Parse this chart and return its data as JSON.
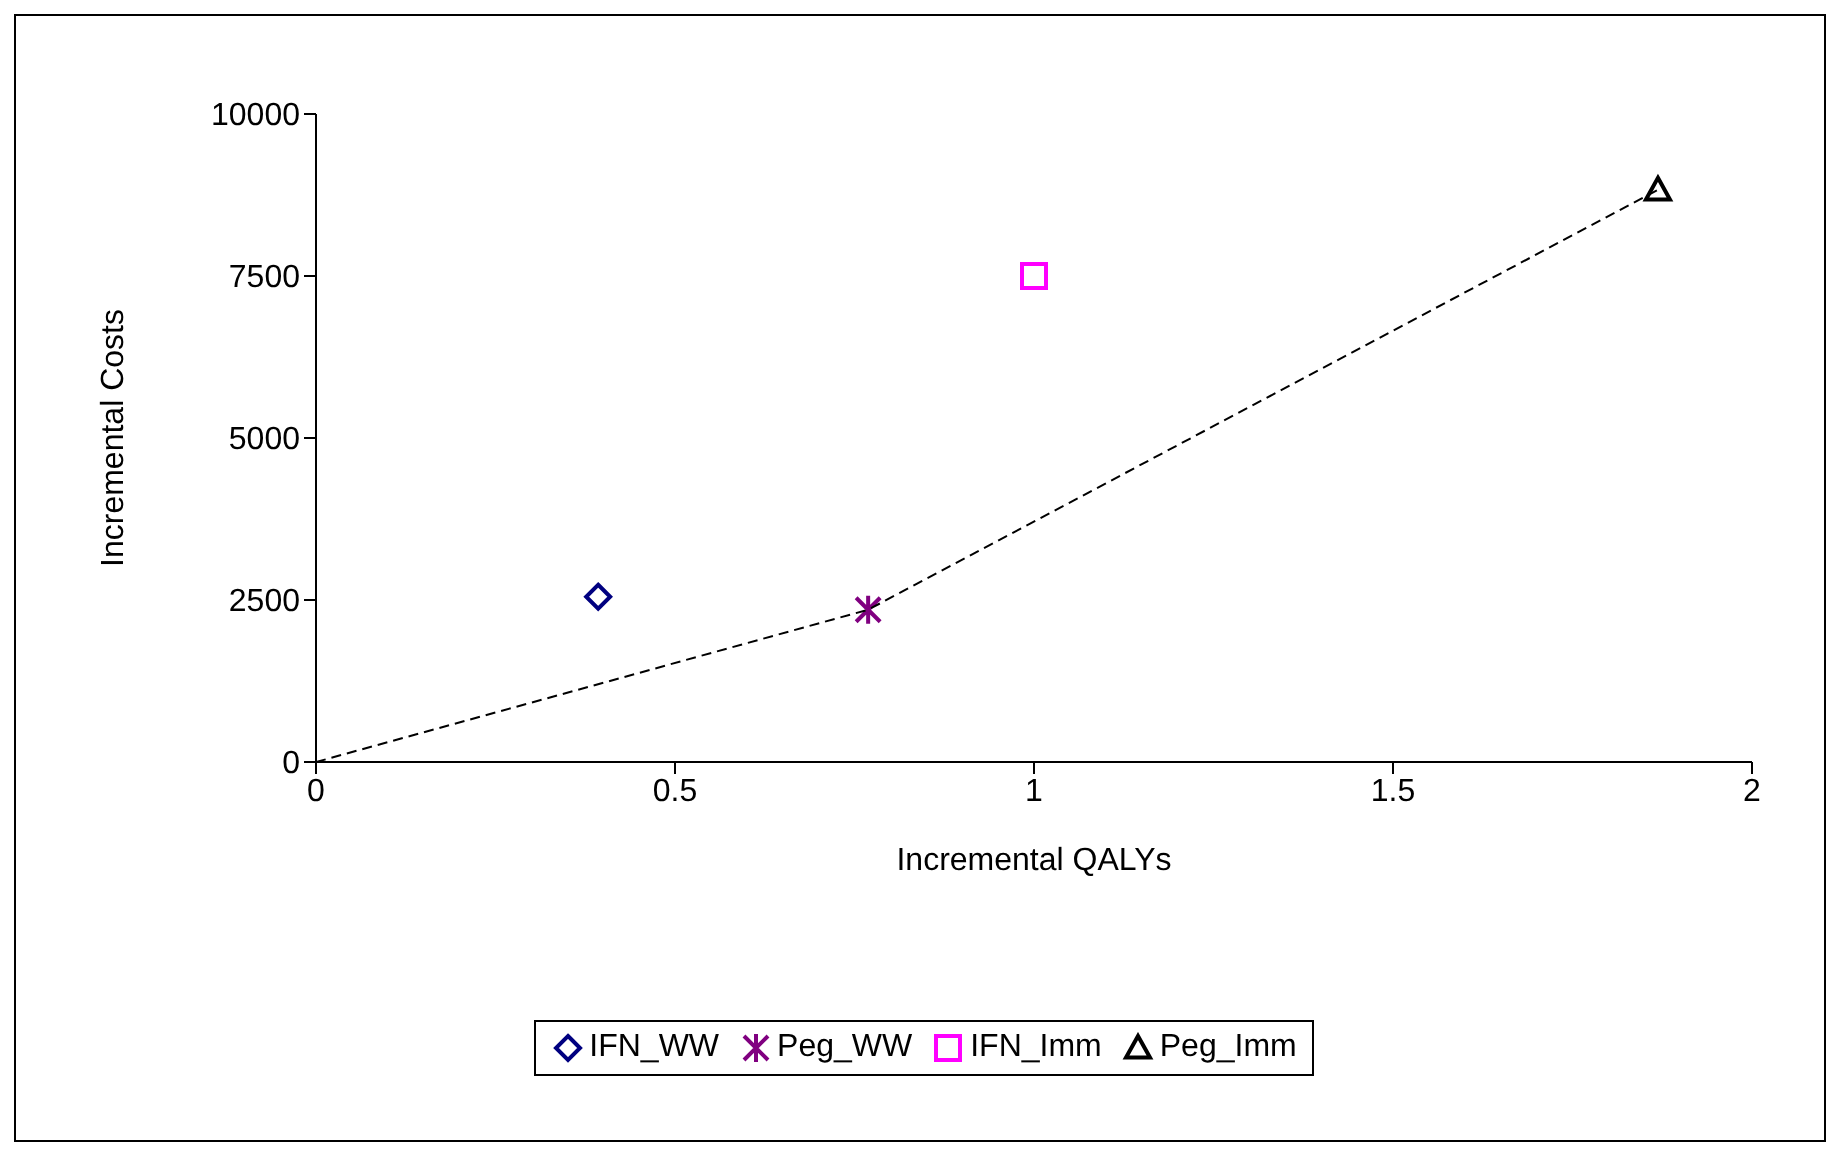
{
  "chart_data": {
    "type": "scatter",
    "xlabel": "Incremental QALYs",
    "ylabel": "Incremental Costs",
    "xlim": [
      0,
      2
    ],
    "xticks": [
      0,
      0.5,
      1,
      1.5,
      2
    ],
    "ylim": [
      0,
      10000
    ],
    "yticks": [
      0,
      2500,
      5000,
      7500,
      10000
    ],
    "legend": "bottom",
    "series": [
      {
        "name": "IFN_WW",
        "color": "#000080",
        "marker": "diamond",
        "x": [
          0.393
        ],
        "values": [
          2550
        ]
      },
      {
        "name": "Peg_WW",
        "color": "#800080",
        "marker": "cross",
        "x": [
          0.769
        ],
        "values": [
          2350
        ]
      },
      {
        "name": "IFN_Imm",
        "color": "#ff00ff",
        "marker": "square",
        "x": [
          1.0
        ],
        "values": [
          7500
        ]
      },
      {
        "name": "Peg_Imm",
        "color": "#000000",
        "marker": "triangle",
        "x": [
          1.869
        ],
        "values": [
          8830
        ]
      },
      {
        "type": "line",
        "color": "#000000",
        "line_style": "dashed",
        "marker": "none",
        "x": [
          0,
          0.769,
          1.869
        ],
        "values": [
          0,
          2350,
          8830
        ]
      }
    ]
  }
}
